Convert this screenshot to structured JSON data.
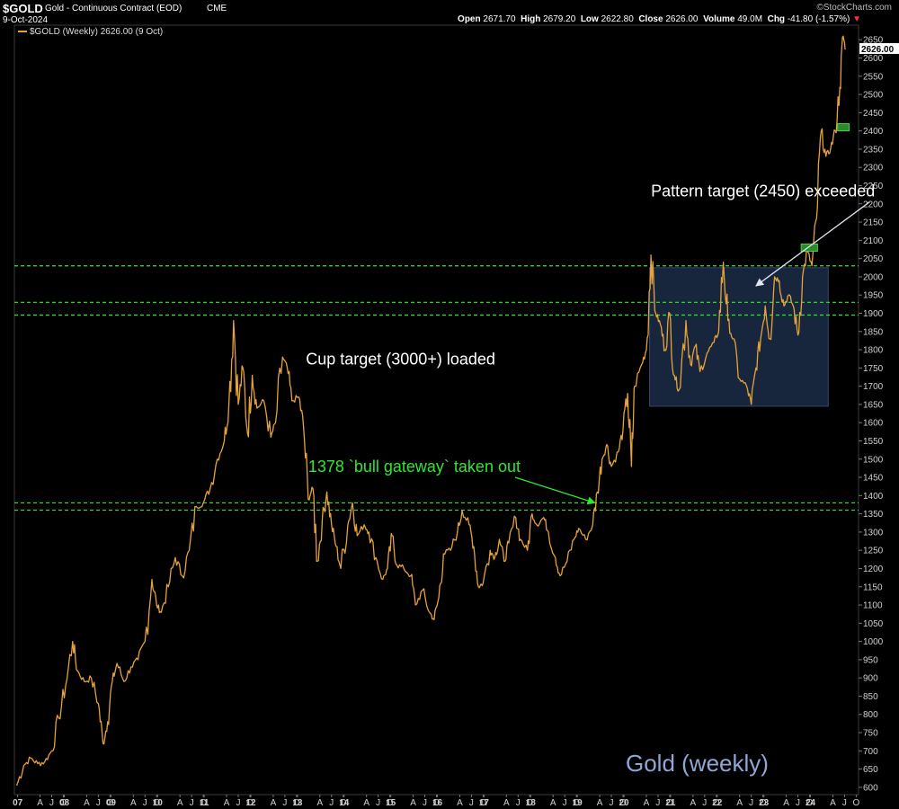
{
  "header": {
    "symbol": "$GOLD",
    "name": "Gold - Continuous Contract (EOD)",
    "exchange": "CME",
    "date": "9-Oct-2024",
    "brand": "©StockCharts.com",
    "ohlc": {
      "open_label": "Open",
      "open": "2671.70",
      "high_label": "High",
      "high": "2679.20",
      "low_label": "Low",
      "low": "2622.80",
      "close_label": "Close",
      "close": "2626.00",
      "volume_label": "Volume",
      "volume": "49.0M",
      "chg_label": "Chg",
      "chg": "-41.80 (-1.57%)",
      "chg_arrow": "▼"
    }
  },
  "legend": {
    "label": "$GOLD (Weekly) 2626.00 (9 Oct)"
  },
  "colors": {
    "background": "#000000",
    "price_line": "#e6a23a",
    "support_line": "#2ee82e",
    "box_fill": "#1b2a44",
    "green_marker": "#2a8a2a",
    "grid_text": "#cfcfcf",
    "title_watermark": "#8fa6d6"
  },
  "chart_data": {
    "type": "line",
    "title": "Gold (weekly)",
    "series_name": "$GOLD (Weekly)",
    "last_value": "2626.00",
    "ylim": [
      580,
      2690
    ],
    "y_ticks": [
      600,
      650,
      700,
      750,
      800,
      850,
      900,
      950,
      1000,
      1050,
      1100,
      1150,
      1200,
      1250,
      1300,
      1350,
      1400,
      1450,
      1500,
      1550,
      1600,
      1650,
      1700,
      1750,
      1800,
      1850,
      1900,
      1950,
      2000,
      2050,
      2100,
      2150,
      2200,
      2250,
      2300,
      2350,
      2400,
      2450,
      2500,
      2550,
      2600,
      2650
    ],
    "x_range": [
      "2007-01",
      "2024-10"
    ],
    "x_tick_labels": [
      {
        "t": 2007.02,
        "label": "07"
      },
      {
        "t": 2007.5,
        "label": "A"
      },
      {
        "t": 2007.75,
        "label": "J"
      },
      {
        "t": 2008.0,
        "label": "O"
      },
      {
        "t": 2008.02,
        "label": "08"
      },
      {
        "t": 2008.5,
        "label": "A"
      },
      {
        "t": 2008.75,
        "label": "J"
      },
      {
        "t": 2009.0,
        "label": "O"
      },
      {
        "t": 2009.02,
        "label": "09"
      },
      {
        "t": 2009.5,
        "label": "A"
      },
      {
        "t": 2009.75,
        "label": "J"
      },
      {
        "t": 2010.0,
        "label": "O"
      },
      {
        "t": 2010.02,
        "label": "10"
      },
      {
        "t": 2010.5,
        "label": "A"
      },
      {
        "t": 2010.75,
        "label": "J"
      },
      {
        "t": 2011.0,
        "label": "O"
      },
      {
        "t": 2011.02,
        "label": "11"
      },
      {
        "t": 2011.5,
        "label": "A"
      },
      {
        "t": 2011.75,
        "label": "J"
      },
      {
        "t": 2012.0,
        "label": "O"
      },
      {
        "t": 2012.02,
        "label": "12"
      },
      {
        "t": 2012.5,
        "label": "A"
      },
      {
        "t": 2012.75,
        "label": "J"
      },
      {
        "t": 2013.0,
        "label": "O"
      },
      {
        "t": 2013.02,
        "label": "13"
      },
      {
        "t": 2013.5,
        "label": "A"
      },
      {
        "t": 2013.75,
        "label": "J"
      },
      {
        "t": 2014.0,
        "label": "O"
      },
      {
        "t": 2014.02,
        "label": "14"
      },
      {
        "t": 2014.5,
        "label": "A"
      },
      {
        "t": 2014.75,
        "label": "J"
      },
      {
        "t": 2015.0,
        "label": "O"
      },
      {
        "t": 2015.02,
        "label": "15"
      },
      {
        "t": 2015.5,
        "label": "A"
      },
      {
        "t": 2015.75,
        "label": "J"
      },
      {
        "t": 2016.0,
        "label": "O"
      },
      {
        "t": 2016.02,
        "label": "16"
      },
      {
        "t": 2016.5,
        "label": "A"
      },
      {
        "t": 2016.75,
        "label": "J"
      },
      {
        "t": 2017.0,
        "label": "O"
      },
      {
        "t": 2017.02,
        "label": "17"
      },
      {
        "t": 2017.5,
        "label": "A"
      },
      {
        "t": 2017.75,
        "label": "J"
      },
      {
        "t": 2018.0,
        "label": "O"
      },
      {
        "t": 2018.02,
        "label": "18"
      },
      {
        "t": 2018.5,
        "label": "A"
      },
      {
        "t": 2018.75,
        "label": "J"
      },
      {
        "t": 2019.0,
        "label": "O"
      },
      {
        "t": 2019.02,
        "label": "19"
      },
      {
        "t": 2019.5,
        "label": "A"
      },
      {
        "t": 2019.75,
        "label": "J"
      },
      {
        "t": 2020.0,
        "label": "O"
      },
      {
        "t": 2020.02,
        "label": "20"
      },
      {
        "t": 2020.5,
        "label": "A"
      },
      {
        "t": 2020.75,
        "label": "J"
      },
      {
        "t": 2021.0,
        "label": "O"
      },
      {
        "t": 2021.02,
        "label": "21"
      },
      {
        "t": 2021.5,
        "label": "A"
      },
      {
        "t": 2021.75,
        "label": "J"
      },
      {
        "t": 2022.0,
        "label": "O"
      },
      {
        "t": 2022.02,
        "label": "22"
      },
      {
        "t": 2022.5,
        "label": "A"
      },
      {
        "t": 2022.75,
        "label": "J"
      },
      {
        "t": 2023.0,
        "label": "O"
      },
      {
        "t": 2023.02,
        "label": "23"
      },
      {
        "t": 2023.5,
        "label": "A"
      },
      {
        "t": 2023.75,
        "label": "J"
      },
      {
        "t": 2024.0,
        "label": "O"
      },
      {
        "t": 2024.02,
        "label": "24"
      },
      {
        "t": 2024.5,
        "label": "A"
      },
      {
        "t": 2024.75,
        "label": "J"
      },
      {
        "t": 2025.0,
        "label": "O"
      }
    ],
    "series": [
      {
        "name": "$GOLD (Weekly)",
        "points": [
          [
            2007.0,
            605
          ],
          [
            2007.15,
            660
          ],
          [
            2007.3,
            680
          ],
          [
            2007.45,
            665
          ],
          [
            2007.6,
            670
          ],
          [
            2007.75,
            700
          ],
          [
            2007.9,
            790
          ],
          [
            2008.05,
            880
          ],
          [
            2008.2,
            1000
          ],
          [
            2008.3,
            920
          ],
          [
            2008.45,
            890
          ],
          [
            2008.6,
            900
          ],
          [
            2008.75,
            830
          ],
          [
            2008.85,
            720
          ],
          [
            2008.95,
            780
          ],
          [
            2009.05,
            890
          ],
          [
            2009.15,
            940
          ],
          [
            2009.3,
            890
          ],
          [
            2009.45,
            930
          ],
          [
            2009.6,
            950
          ],
          [
            2009.75,
            1000
          ],
          [
            2009.9,
            1170
          ],
          [
            2010.0,
            1100
          ],
          [
            2010.1,
            1080
          ],
          [
            2010.25,
            1150
          ],
          [
            2010.4,
            1230
          ],
          [
            2010.55,
            1180
          ],
          [
            2010.7,
            1250
          ],
          [
            2010.85,
            1370
          ],
          [
            2011.0,
            1380
          ],
          [
            2011.15,
            1420
          ],
          [
            2011.3,
            1500
          ],
          [
            2011.45,
            1550
          ],
          [
            2011.55,
            1650
          ],
          [
            2011.65,
            1880
          ],
          [
            2011.75,
            1650
          ],
          [
            2011.85,
            1750
          ],
          [
            2011.95,
            1570
          ],
          [
            2012.05,
            1730
          ],
          [
            2012.15,
            1640
          ],
          [
            2012.3,
            1660
          ],
          [
            2012.45,
            1560
          ],
          [
            2012.55,
            1600
          ],
          [
            2012.7,
            1780
          ],
          [
            2012.8,
            1750
          ],
          [
            2012.9,
            1660
          ],
          [
            2013.05,
            1670
          ],
          [
            2013.15,
            1590
          ],
          [
            2013.25,
            1390
          ],
          [
            2013.35,
            1420
          ],
          [
            2013.45,
            1220
          ],
          [
            2013.55,
            1330
          ],
          [
            2013.65,
            1410
          ],
          [
            2013.75,
            1320
          ],
          [
            2013.85,
            1260
          ],
          [
            2013.95,
            1200
          ],
          [
            2014.1,
            1320
          ],
          [
            2014.2,
            1380
          ],
          [
            2014.3,
            1290
          ],
          [
            2014.45,
            1320
          ],
          [
            2014.55,
            1300
          ],
          [
            2014.7,
            1230
          ],
          [
            2014.85,
            1170
          ],
          [
            2014.95,
            1200
          ],
          [
            2015.05,
            1290
          ],
          [
            2015.15,
            1210
          ],
          [
            2015.3,
            1200
          ],
          [
            2015.45,
            1180
          ],
          [
            2015.55,
            1100
          ],
          [
            2015.7,
            1140
          ],
          [
            2015.85,
            1080
          ],
          [
            2015.95,
            1060
          ],
          [
            2016.05,
            1120
          ],
          [
            2016.15,
            1240
          ],
          [
            2016.3,
            1250
          ],
          [
            2016.45,
            1300
          ],
          [
            2016.55,
            1360
          ],
          [
            2016.7,
            1320
          ],
          [
            2016.8,
            1260
          ],
          [
            2016.9,
            1150
          ],
          [
            2017.0,
            1160
          ],
          [
            2017.15,
            1250
          ],
          [
            2017.25,
            1230
          ],
          [
            2017.35,
            1280
          ],
          [
            2017.45,
            1220
          ],
          [
            2017.55,
            1270
          ],
          [
            2017.7,
            1340
          ],
          [
            2017.8,
            1280
          ],
          [
            2017.95,
            1250
          ],
          [
            2018.05,
            1350
          ],
          [
            2018.15,
            1320
          ],
          [
            2018.3,
            1340
          ],
          [
            2018.4,
            1300
          ],
          [
            2018.55,
            1230
          ],
          [
            2018.65,
            1180
          ],
          [
            2018.8,
            1220
          ],
          [
            2018.95,
            1280
          ],
          [
            2019.05,
            1310
          ],
          [
            2019.2,
            1280
          ],
          [
            2019.35,
            1320
          ],
          [
            2019.45,
            1410
          ],
          [
            2019.55,
            1500
          ],
          [
            2019.65,
            1540
          ],
          [
            2019.75,
            1480
          ],
          [
            2019.9,
            1520
          ],
          [
            2020.0,
            1580
          ],
          [
            2020.1,
            1680
          ],
          [
            2020.18,
            1480
          ],
          [
            2020.25,
            1700
          ],
          [
            2020.4,
            1760
          ],
          [
            2020.5,
            1800
          ],
          [
            2020.6,
            2060
          ],
          [
            2020.7,
            1900
          ],
          [
            2020.8,
            1870
          ],
          [
            2020.9,
            1800
          ],
          [
            2021.0,
            1900
          ],
          [
            2021.1,
            1730
          ],
          [
            2021.2,
            1690
          ],
          [
            2021.35,
            1880
          ],
          [
            2021.45,
            1760
          ],
          [
            2021.55,
            1810
          ],
          [
            2021.65,
            1740
          ],
          [
            2021.8,
            1790
          ],
          [
            2021.95,
            1820
          ],
          [
            2022.05,
            1850
          ],
          [
            2022.15,
            2040
          ],
          [
            2022.25,
            1880
          ],
          [
            2022.35,
            1830
          ],
          [
            2022.5,
            1720
          ],
          [
            2022.65,
            1700
          ],
          [
            2022.75,
            1650
          ],
          [
            2022.85,
            1750
          ],
          [
            2022.95,
            1830
          ],
          [
            2023.05,
            1920
          ],
          [
            2023.15,
            1830
          ],
          [
            2023.25,
            2000
          ],
          [
            2023.35,
            1990
          ],
          [
            2023.45,
            1920
          ],
          [
            2023.55,
            1950
          ],
          [
            2023.65,
            1920
          ],
          [
            2023.75,
            1840
          ],
          [
            2023.85,
            2000
          ],
          [
            2023.95,
            2070
          ],
          [
            2024.05,
            2030
          ],
          [
            2024.15,
            2160
          ],
          [
            2024.25,
            2400
          ],
          [
            2024.35,
            2330
          ],
          [
            2024.45,
            2350
          ],
          [
            2024.55,
            2400
          ],
          [
            2024.65,
            2520
          ],
          [
            2024.72,
            2660
          ],
          [
            2024.77,
            2626
          ]
        ]
      }
    ],
    "hlines": [
      {
        "name": "support-line-2030",
        "value": 2030
      },
      {
        "name": "support-line-1930",
        "value": 1930
      },
      {
        "name": "support-line-1895",
        "value": 1895
      },
      {
        "name": "support-line-1380",
        "value": 1380
      },
      {
        "name": "support-line-1360",
        "value": 1360
      }
    ],
    "box": {
      "t0": 2020.57,
      "t1": 2024.4,
      "y0": 1645,
      "y1": 2025
    },
    "green_markers": [
      {
        "t0": 2023.82,
        "t1": 2024.17,
        "y": 2080
      },
      {
        "t0": 2024.6,
        "t1": 2024.85,
        "y": 2410
      }
    ],
    "annotations": [
      {
        "name": "pattern-target-annotation",
        "text": "Pattern target (2450) exceeded",
        "color": "#ffffff",
        "t": 2020.6,
        "y": 2220,
        "arrow": {
          "to_t": 2022.85,
          "to_y": 1975
        }
      },
      {
        "name": "cup-target-annotation",
        "text": "Cup target (3000+) loaded",
        "color": "#ffffff",
        "t": 2013.2,
        "y": 1760
      },
      {
        "name": "bull-gateway-annotation",
        "text": "1378 `bull gateway` taken out",
        "color": "#2ee82e",
        "t": 2013.25,
        "y": 1465,
        "arrow": {
          "to_t": 2019.4,
          "to_y": 1380
        }
      }
    ]
  }
}
